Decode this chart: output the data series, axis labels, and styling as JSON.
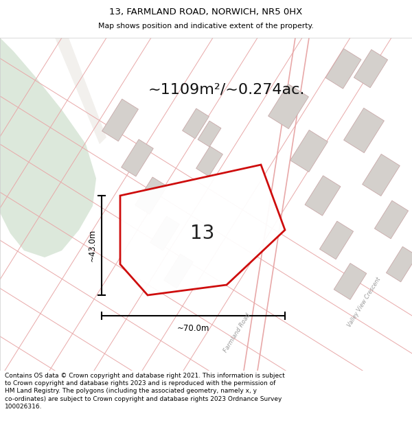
{
  "title_line1": "13, FARMLAND ROAD, NORWICH, NR5 0HX",
  "title_line2": "Map shows position and indicative extent of the property.",
  "area_text": "~1109m²/~0.274ac.",
  "number_label": "13",
  "dim_height": "~43.0m",
  "dim_width": "~70.0m",
  "road_label1": "Farmland Road",
  "road_label2": "Valley View Crescent",
  "footer_text": "Contains OS data © Crown copyright and database right 2021. This information is subject\nto Crown copyright and database rights 2023 and is reproduced with the permission of\nHM Land Registry. The polygons (including the associated geometry, namely x, y\nco-ordinates) are subject to Crown copyright and database rights 2023 Ordnance Survey\n100026316.",
  "bg_color": "#f2f0ed",
  "green_color": "#dce8db",
  "plot_border_color": "#cc0000",
  "road_line_color": "#e8a8a8",
  "building_fill": "#d4d0cc",
  "building_edge": "#c8a8a8",
  "road_outline_color": "#e8b8b8"
}
